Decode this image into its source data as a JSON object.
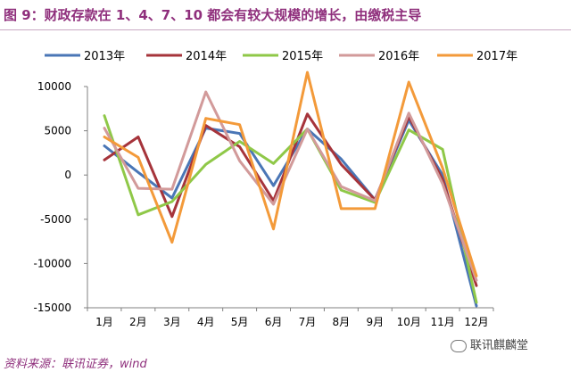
{
  "header": {
    "title": "图 9：财政存款在 1、4、7、10 都会有较大规模的增长，由缴税主导"
  },
  "footer": {
    "source": "资料来源：联讯证券，wind",
    "watermark": "联讯麒麟堂"
  },
  "chart_data": {
    "type": "line",
    "categories": [
      "1月",
      "2月",
      "3月",
      "4月",
      "5月",
      "6月",
      "7月",
      "8月",
      "9月",
      "10月",
      "11月",
      "12月"
    ],
    "ylim": [
      -15000,
      10000
    ],
    "yticks": [
      10000,
      5000,
      0,
      -5000,
      -10000,
      -15000
    ],
    "ytick_labels": [
      "10000",
      "5000",
      "0",
      "-5000",
      "-10000",
      "-15000"
    ],
    "legend_position": "top",
    "grid": false,
    "series": [
      {
        "name": "2013年",
        "color": "#4a76b6",
        "values": [
          3300,
          300,
          -2600,
          5300,
          4700,
          -1200,
          5200,
          1800,
          -2800,
          6200,
          0,
          -14800
        ]
      },
      {
        "name": "2014年",
        "color": "#a6343b",
        "values": [
          1700,
          4300,
          -4700,
          5600,
          3200,
          -2900,
          6900,
          1200,
          -2800,
          6600,
          -500,
          -12500
        ]
      },
      {
        "name": "2015年",
        "color": "#8fc848",
        "values": [
          6700,
          -4500,
          -3000,
          1200,
          3800,
          1300,
          5200,
          -1700,
          -3100,
          5100,
          2900,
          -14400
        ]
      },
      {
        "name": "2016年",
        "color": "#d29a9a",
        "values": [
          5300,
          -1500,
          -1600,
          9400,
          1600,
          -3300,
          5200,
          -1300,
          -2900,
          7000,
          -1000,
          -11900
        ]
      },
      {
        "name": "2017年",
        "color": "#f39a3a",
        "values": [
          4300,
          2000,
          -7600,
          6400,
          5700,
          -6100,
          11600,
          -3800,
          -3800,
          10500,
          800,
          -11400
        ]
      }
    ]
  }
}
